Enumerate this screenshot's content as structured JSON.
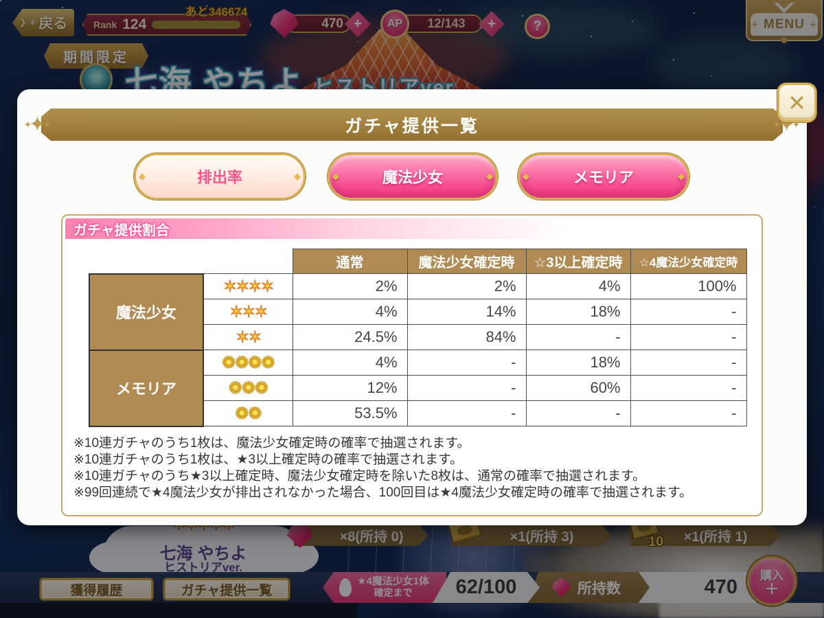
{
  "colors": {
    "accent_pink": "#ef4e87",
    "gold": "#c9a24e",
    "banner_brown": "#a8853f",
    "navy_bg": "#102b55"
  },
  "top_bar": {
    "back_label": "戻る",
    "rank_label": "Rank",
    "rank_value": "124",
    "rank_remaining": "あと346674",
    "gem_count": "470",
    "gem_plus": "+",
    "ap_label": "AP",
    "ap_value": "12/143",
    "ap_plus": "+",
    "help_label": "?",
    "menu_label": "MENU"
  },
  "event_banner": {
    "limited_badge": "期間限定",
    "title": "七海 やちよ",
    "title_suffix": "ヒストリアver."
  },
  "dialog": {
    "title": "ガチャ提供一覧",
    "close_label": "✕",
    "tabs": [
      {
        "label": "排出率",
        "selected": true
      },
      {
        "label": "魔法少女",
        "selected": false
      },
      {
        "label": "メモリア",
        "selected": false
      }
    ],
    "section_title": "ガチャ提供割合",
    "table": {
      "col_headers": [
        "通常",
        "魔法少女確定時",
        "☆3以上確定時",
        "☆4魔法少女確定時"
      ],
      "groups": [
        {
          "label": "魔法少女",
          "rows": [
            {
              "stars": "✶✶✶✶",
              "values": [
                "2%",
                "2%",
                "4%",
                "100%"
              ]
            },
            {
              "stars": "✶✶✶",
              "values": [
                "4%",
                "14%",
                "18%",
                "-"
              ]
            },
            {
              "stars": "✶✶",
              "values": [
                "24.5%",
                "84%",
                "-",
                "-"
              ]
            }
          ]
        },
        {
          "label": "メモリア",
          "rows": [
            {
              "stars": "✺✺✺✺",
              "values": [
                "4%",
                "-",
                "18%",
                "-"
              ]
            },
            {
              "stars": "✺✺✺",
              "values": [
                "12%",
                "-",
                "60%",
                "-"
              ]
            },
            {
              "stars": "✺✺",
              "values": [
                "53.5%",
                "-",
                "-",
                "-"
              ]
            }
          ]
        }
      ]
    },
    "notes": [
      "※10連ガチャのうち1枚は、魔法少女確定時の確率で抽選されます。",
      "※10連ガチャのうち1枚は、★3以上確定時の確率で抽選されます。",
      "※10連ガチャのうち★3以上確定時、魔法少女確定時を除いた8枚は、通常の確率で抽選されます。",
      "※99回連続で★4魔法少女が排出されなかった場合、100回目は★4魔法少女確定時の確率で抽選されます。"
    ]
  },
  "pickup": {
    "stars": "✶✶✶✶✶",
    "name": "七海 やちよ",
    "version": "ヒストリアver."
  },
  "items": [
    {
      "label": "×8(所持 0)"
    },
    {
      "label": "×1(所持 3)"
    },
    {
      "label": "×1(所持 1)",
      "badge": "10"
    }
  ],
  "bottom_bar": {
    "history_label": "獲得履歴",
    "rate_list_label": "ガチャ提供一覧",
    "pity_line1": "★4魔法少女1体",
    "pity_line2": "確定まで",
    "pity_count": "62/100",
    "owned_label": "所持数",
    "owned_value": "470",
    "purchase_label": "購入",
    "purchase_plus": "＋"
  }
}
